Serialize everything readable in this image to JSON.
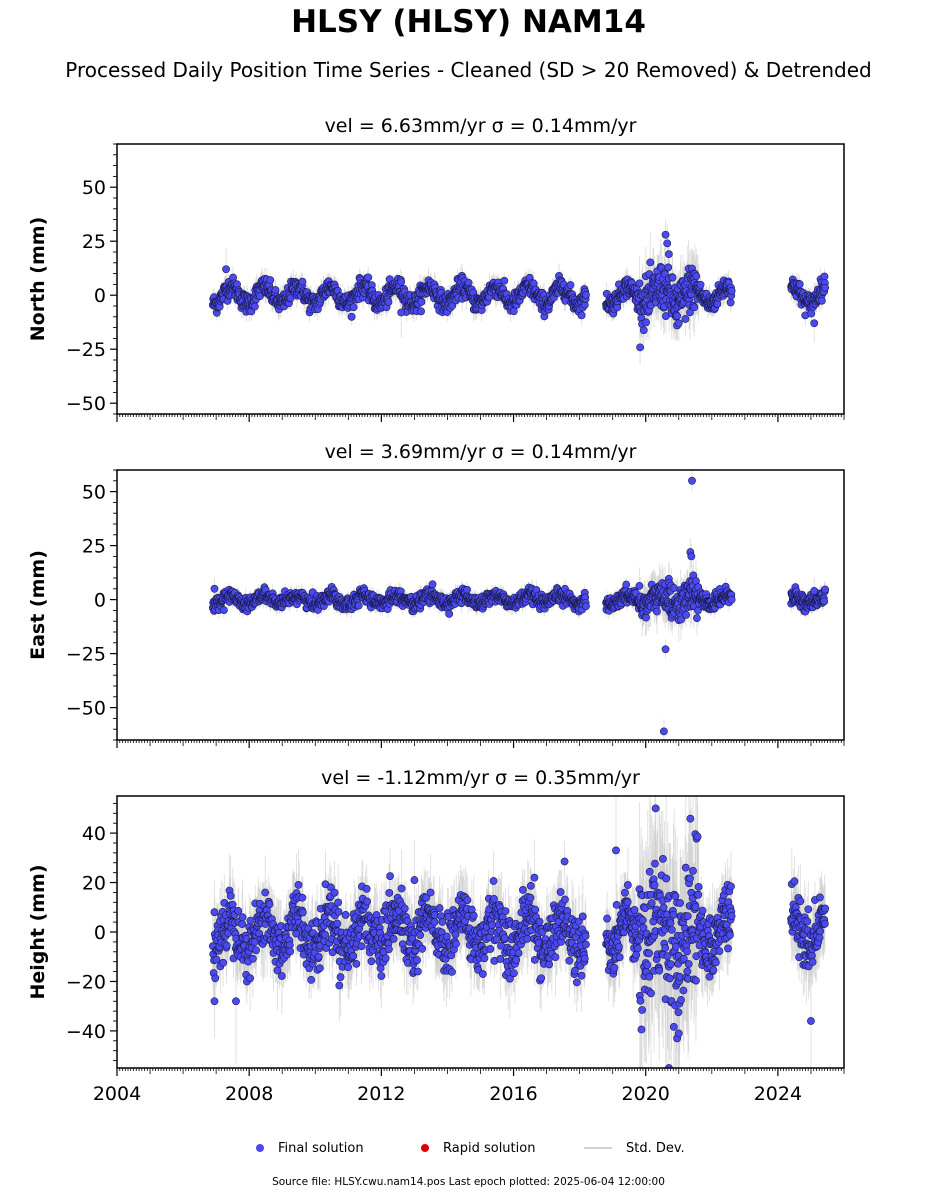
{
  "figure": {
    "title": "HLSY (HLSY) NAM14",
    "subtitle": "Processed Daily Position Time Series - Cleaned (SD > 20 Removed) & Detrended",
    "source_line": "Source file: HLSY.cwu.nam14.pos  Last epoch plotted: 2025-06-04 12:00:00"
  },
  "legend": {
    "items": [
      {
        "label": "Final solution",
        "color": "#4a4af0",
        "kind": "dot"
      },
      {
        "label": "Rapid solution",
        "color": "#e00000",
        "kind": "dot"
      },
      {
        "label": "Std. Dev.",
        "color": "#d3d3d3",
        "kind": "line"
      }
    ]
  },
  "colors": {
    "final_fill": "#4a4af0",
    "final_edge": "#1a1a4a",
    "std_dev": "#c8c8c8"
  },
  "chart_data": [
    {
      "type": "scatter",
      "panel_title": "vel = 6.63mm/yr   σ = 0.14mm/yr",
      "ylabel": "North (mm)",
      "xlim": [
        2004.0,
        2026.0
      ],
      "ylim": [
        -55,
        70
      ],
      "yticks": [
        -50,
        -25,
        0,
        25,
        50
      ],
      "yticklabels": [
        "−50",
        "−25",
        "0",
        "25",
        "50"
      ],
      "x_tick_labels_shown": false,
      "segments": [
        [
          2006.9,
          2018.2
        ],
        [
          2018.8,
          2022.6
        ],
        [
          2024.4,
          2025.43
        ]
      ],
      "seasonal_amplitude": 4,
      "noise": 2.2,
      "outliers": [
        [
          2020.6,
          28
        ],
        [
          2020.65,
          24
        ],
        [
          2020.7,
          19
        ],
        [
          2020.95,
          -14
        ],
        [
          2021.0,
          -13
        ],
        [
          2025.1,
          -13
        ],
        [
          2007.3,
          12
        ],
        [
          2012.6,
          -8
        ]
      ],
      "series": [
        {
          "name": "Final solution",
          "color": "#4a4af0"
        }
      ]
    },
    {
      "type": "scatter",
      "panel_title": "vel = 3.69mm/yr   σ = 0.14mm/yr",
      "ylabel": "East (mm)",
      "xlim": [
        2004.0,
        2026.0
      ],
      "ylim": [
        -65,
        60
      ],
      "yticks": [
        -50,
        -25,
        0,
        25,
        50
      ],
      "yticklabels": [
        "−50",
        "−25",
        "0",
        "25",
        "50"
      ],
      "x_tick_labels_shown": false,
      "segments": [
        [
          2006.9,
          2018.2
        ],
        [
          2018.8,
          2022.6
        ],
        [
          2024.4,
          2025.43
        ]
      ],
      "seasonal_amplitude": 2,
      "noise": 1.6,
      "outliers": [
        [
          2020.55,
          -61
        ],
        [
          2020.6,
          -23
        ],
        [
          2021.4,
          55
        ],
        [
          2021.35,
          22
        ],
        [
          2021.38,
          20
        ],
        [
          2025.1,
          4
        ],
        [
          2006.95,
          5
        ]
      ],
      "series": [
        {
          "name": "Final solution",
          "color": "#4a4af0"
        }
      ]
    },
    {
      "type": "scatter",
      "panel_title": "vel = -1.12mm/yr   σ = 0.35mm/yr",
      "ylabel": "Height (mm)",
      "xlim": [
        2004.0,
        2026.0
      ],
      "ylim": [
        -55,
        55
      ],
      "yticks": [
        -40,
        -20,
        0,
        20,
        40
      ],
      "yticklabels": [
        "−40",
        "−20",
        "0",
        "20",
        "40"
      ],
      "x_tick_labels_shown": true,
      "xticks": [
        2004,
        2008,
        2012,
        2016,
        2020,
        2024
      ],
      "xticklabels": [
        "2004",
        "2008",
        "2012",
        "2016",
        "2020",
        "2024"
      ],
      "segments": [
        [
          2006.9,
          2018.2
        ],
        [
          2018.8,
          2022.6
        ],
        [
          2024.4,
          2025.43
        ]
      ],
      "seasonal_amplitude": 7,
      "noise": 6,
      "outliers": [
        [
          2020.3,
          50
        ],
        [
          2019.1,
          33
        ],
        [
          2013.0,
          21
        ],
        [
          2020.95,
          -43
        ],
        [
          2021.0,
          -41
        ],
        [
          2020.7,
          -55
        ],
        [
          2006.95,
          -28
        ],
        [
          2007.6,
          -28
        ],
        [
          2025.0,
          -36
        ]
      ],
      "series": [
        {
          "name": "Final solution",
          "color": "#4a4af0"
        }
      ]
    }
  ]
}
